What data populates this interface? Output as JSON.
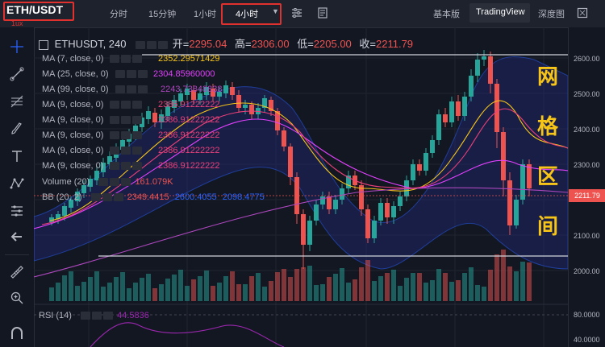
{
  "toolbar": {
    "symbol": "ETH/USDT",
    "timeframes": [
      "分时",
      "15分钟",
      "1小时"
    ],
    "active_timeframe": "4小时",
    "views": [
      "基本版",
      "TradingView",
      "深度图"
    ],
    "active_view": "TradingView",
    "sub_tag": "1ux"
  },
  "header": {
    "symbol_line": "ETHUSDT, 240",
    "open_label": "开=",
    "open": "2295.04",
    "high_label": "高=",
    "high": "2306.00",
    "low_label": "低=",
    "low": "2205.00",
    "close_label": "收=",
    "close": "2211.79"
  },
  "indicators": [
    {
      "label": "MA (7, close, 0)",
      "value": "2352.29571429",
      "color": "#f7c518"
    },
    {
      "label": "MA (25, close, 0)",
      "value": "2304.85960000",
      "color": "#e040fb"
    },
    {
      "label": "MA (99, close, 0)",
      "value": "2243.73848838",
      "color": "#ab47bc"
    },
    {
      "label": "MA (9, close, 0)",
      "value": "2386.91222222",
      "color": "#ec407a"
    },
    {
      "label": "MA (9, close, 0)",
      "value": "2386.91222222",
      "color": "#ec407a"
    },
    {
      "label": "MA (9, close, 0)",
      "value": "2386.91222222",
      "color": "#ec407a"
    },
    {
      "label": "MA (9, close, 0)",
      "value": "2386.91222222",
      "color": "#ec407a"
    },
    {
      "label": "MA (9, close, 0)",
      "value": "2386.91222222",
      "color": "#ec407a"
    }
  ],
  "volume": {
    "label": "Volume (20)",
    "value": "161.079K",
    "color": "#ef5350"
  },
  "bb": {
    "label": "BB (20, 2)",
    "values": [
      "2349.4415",
      "2600.4055",
      "2098.4775"
    ],
    "colors": [
      "#ef5350",
      "#2962ff",
      "#2962ff"
    ]
  },
  "rsi": {
    "label": "RSI (14)",
    "value": "44.5836",
    "color": "#9c27b0"
  },
  "price_axis": {
    "ticks": [
      "2600.00",
      "2500.00",
      "2400.00",
      "2300.00",
      "2100.00",
      "2000.00"
    ],
    "current": "2211.79",
    "rsi_ticks": [
      "80.0000",
      "40.0000"
    ]
  },
  "annotation": {
    "chars": [
      "网",
      "格",
      "区",
      "间"
    ]
  },
  "colors": {
    "up": "#26a69a",
    "down": "#ef5350",
    "highlight": "#e0312f",
    "annotation": "#f7c518"
  }
}
